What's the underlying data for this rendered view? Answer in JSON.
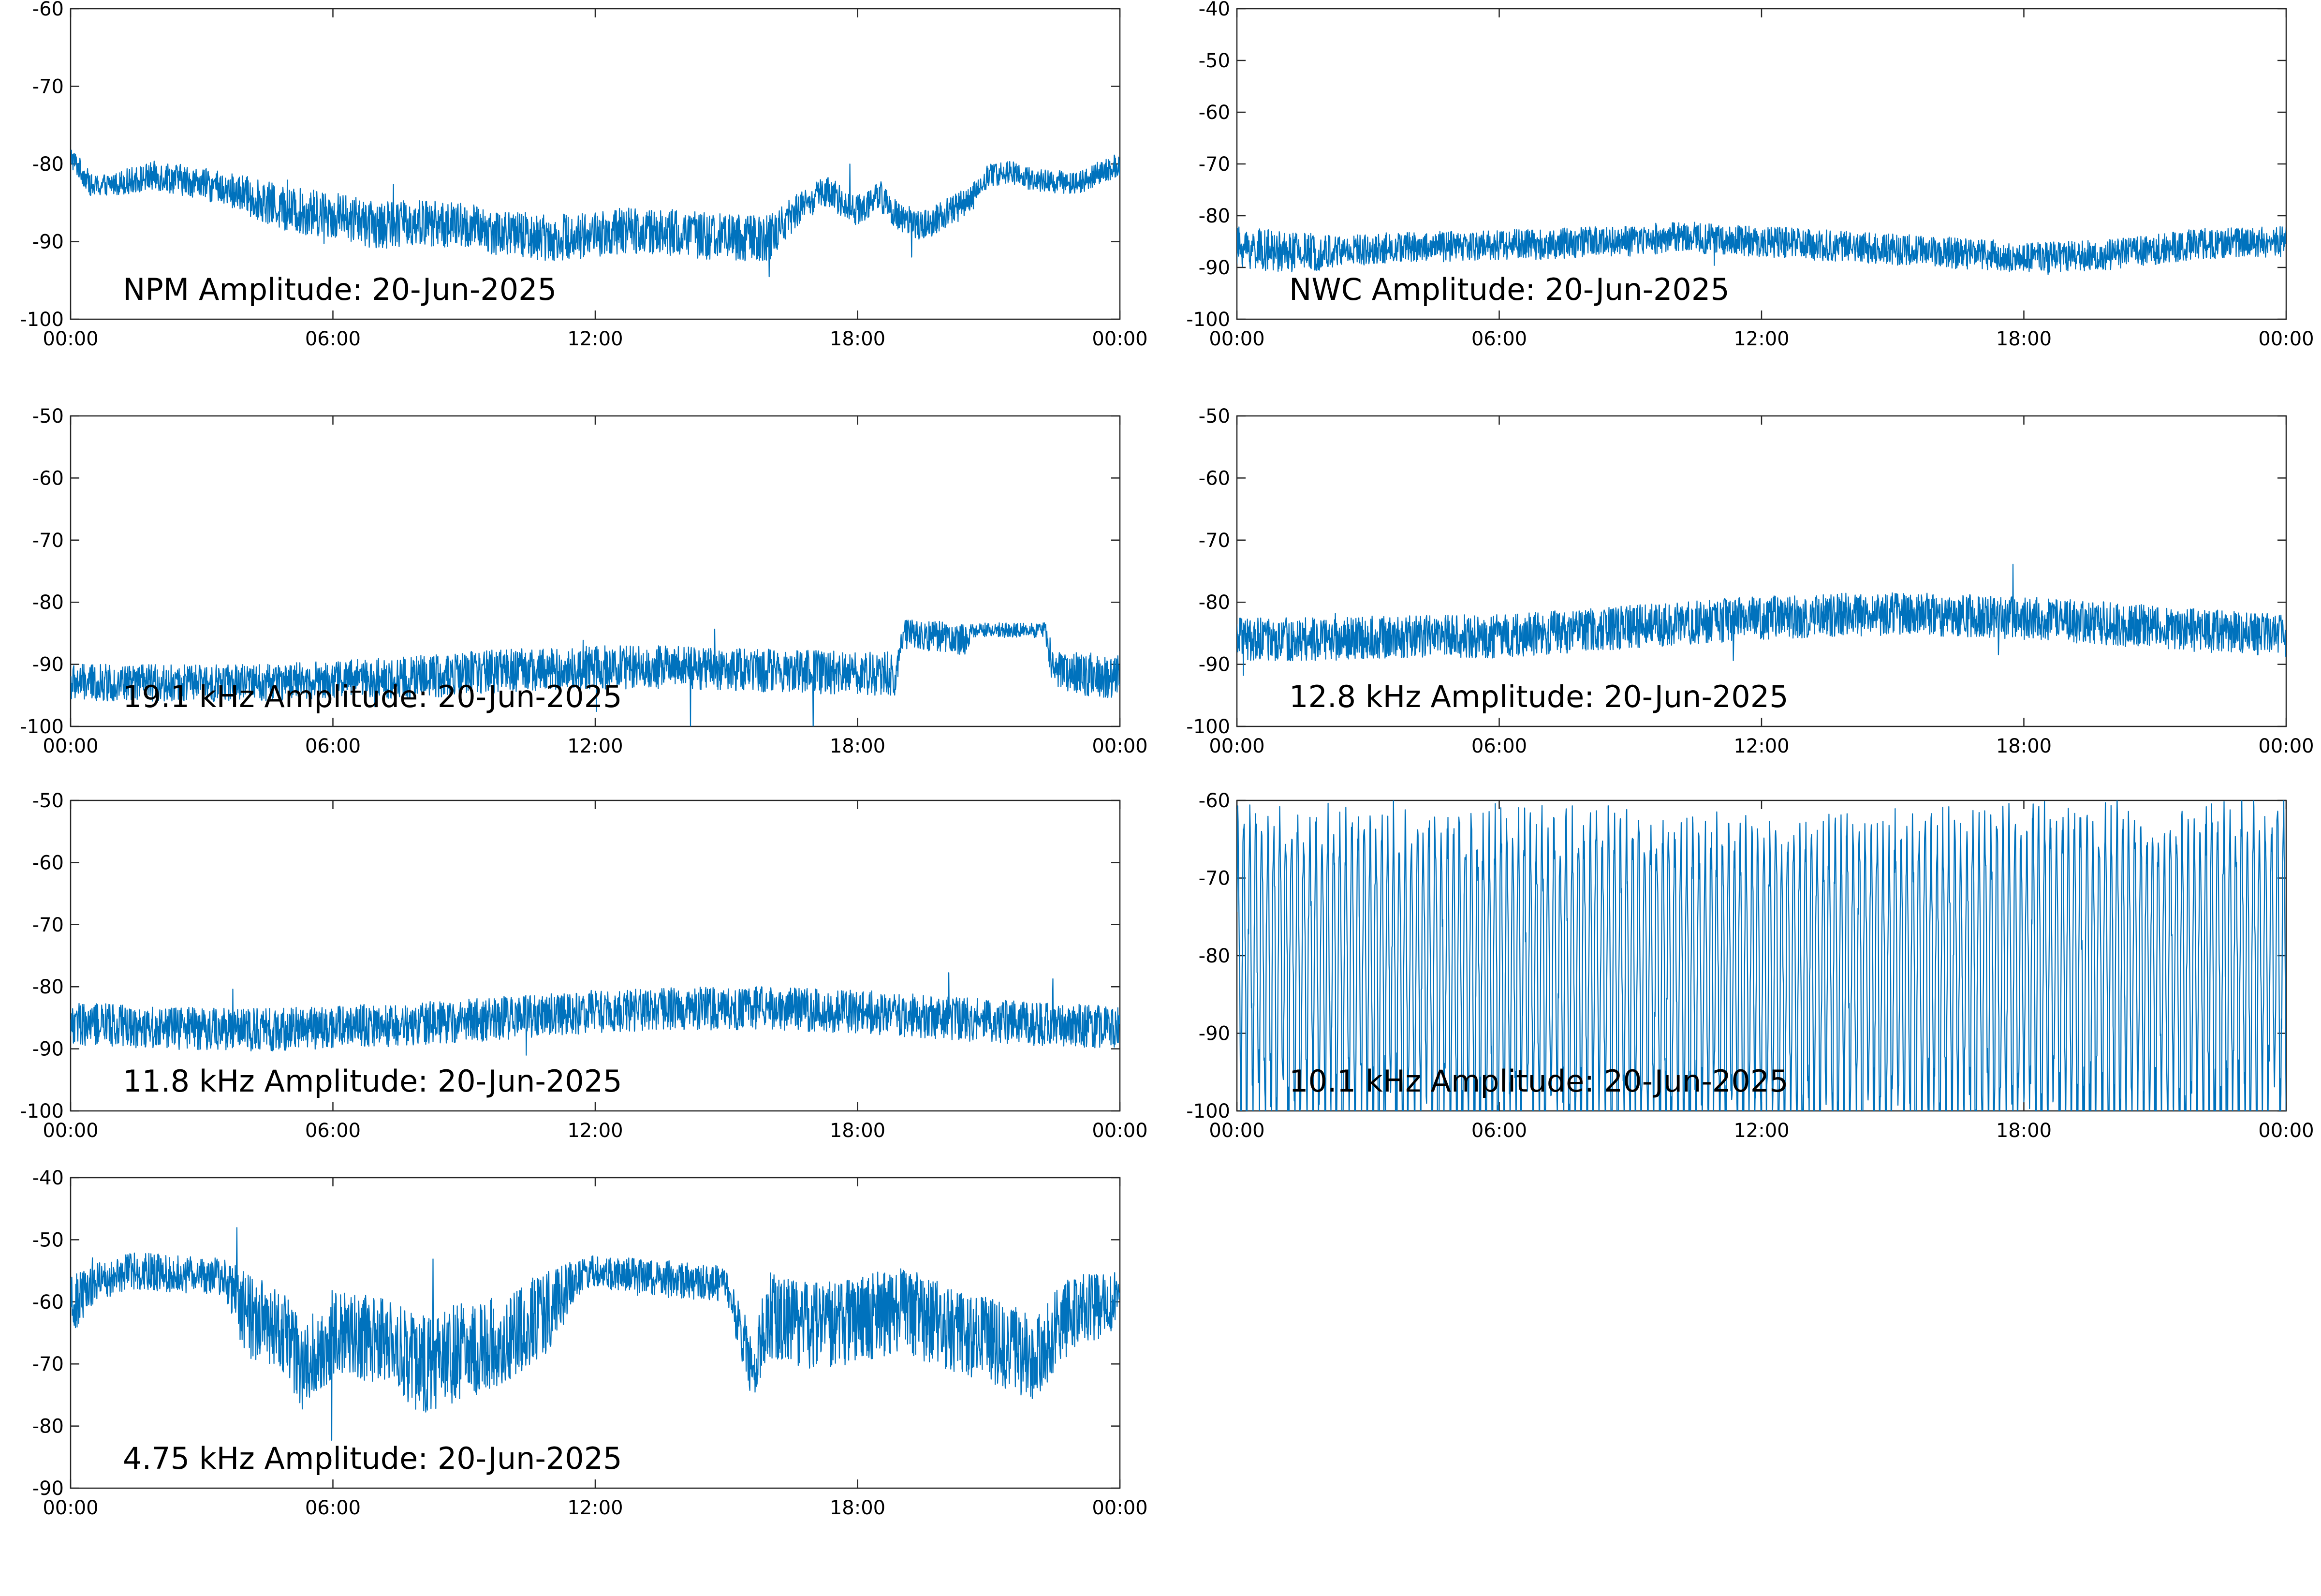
{
  "style": {
    "line_color": "#0072BD",
    "axis_color": "#262626",
    "background": "#ffffff"
  },
  "chart_data": [
    {
      "type": "line",
      "title": "NPM Amplitude: 20-Jun-2025",
      "ylim": [
        -100,
        -60
      ],
      "yticks": [
        "-60",
        "-70",
        "-80",
        "-90",
        "-100"
      ],
      "xlim": [
        "00:00",
        "24:00"
      ],
      "xticks": [
        "00:00",
        "06:00",
        "12:00",
        "18:00",
        "00:00"
      ],
      "grid": false,
      "series": [
        {
          "color": "#0072BD",
          "x": [
            0,
            0.5,
            1,
            2,
            3,
            4,
            5,
            6,
            7,
            8,
            9,
            10,
            11,
            12,
            13,
            14,
            15,
            16,
            16.7,
            17.3,
            18,
            18.5,
            19,
            19.5,
            20,
            20.5,
            21,
            21.5,
            22,
            23,
            24
          ],
          "y": [
            -79,
            -83,
            -82.5,
            -81.5,
            -82.5,
            -84,
            -86,
            -86.5,
            -88,
            -87.5,
            -88,
            -89,
            -89.5,
            -89,
            -88.5,
            -89,
            -89.5,
            -89.5,
            -85.5,
            -83.5,
            -86,
            -84,
            -87,
            -88,
            -86.5,
            -85,
            -81.5,
            -81,
            -82,
            -82.5,
            -80
          ],
          "spread": [
            1.5,
            1.5,
            1.5,
            2,
            2,
            2.5,
            3,
            3,
            3,
            3,
            3,
            3,
            3,
            3,
            3,
            3,
            3,
            3,
            2,
            2,
            2,
            2,
            2,
            2,
            2,
            2,
            1.5,
            1.5,
            1.5,
            1.5,
            1.5
          ]
        }
      ]
    },
    {
      "type": "line",
      "title": "NWC Amplitude: 20-Jun-2025",
      "ylim": [
        -100,
        -40
      ],
      "yticks": [
        "-40",
        "-50",
        "-60",
        "-70",
        "-80",
        "-90",
        "-100"
      ],
      "xlim": [
        "00:00",
        "24:00"
      ],
      "xticks": [
        "00:00",
        "06:00",
        "12:00",
        "18:00",
        "00:00"
      ],
      "grid": false,
      "series": [
        {
          "color": "#0072BD",
          "x": [
            0,
            1,
            2,
            3,
            4,
            5,
            6,
            7,
            8,
            9,
            10,
            11,
            12,
            13,
            14,
            15,
            16,
            17,
            18,
            19,
            20,
            21,
            22,
            23,
            24
          ],
          "y": [
            -86,
            -87,
            -87,
            -86.5,
            -86,
            -86,
            -85.5,
            -85.5,
            -85,
            -85,
            -84,
            -84.5,
            -85,
            -85.5,
            -86,
            -86.5,
            -87,
            -87.5,
            -88,
            -88,
            -87.5,
            -86.5,
            -85.5,
            -85,
            -85
          ],
          "spread": [
            4,
            4,
            3.5,
            3,
            3,
            3,
            3,
            3,
            3,
            3,
            3,
            3,
            3,
            3,
            3,
            3,
            3,
            3,
            3,
            3,
            3,
            3,
            3,
            3,
            3
          ]
        }
      ]
    },
    {
      "type": "line",
      "title": "19.1 kHz Amplitude: 20-Jun-2025",
      "ylim": [
        -100,
        -50
      ],
      "yticks": [
        "-50",
        "-60",
        "-70",
        "-80",
        "-90",
        "-100"
      ],
      "xlim": [
        "00:00",
        "24:00"
      ],
      "xticks": [
        "00:00",
        "06:00",
        "12:00",
        "18:00",
        "00:00"
      ],
      "grid": false,
      "series": [
        {
          "color": "#0072BD",
          "x": [
            0,
            2,
            4,
            6,
            8,
            10,
            12,
            14,
            16,
            18,
            18.9,
            19.0,
            20.5,
            20.6,
            22.3,
            22.4,
            23,
            24
          ],
          "y": [
            -93,
            -93,
            -93,
            -92.5,
            -92,
            -91,
            -90.5,
            -90.5,
            -91,
            -91.5,
            -91.5,
            -85,
            -86,
            -84.5,
            -84.5,
            -90.5,
            -91.5,
            -92
          ],
          "spread": [
            3,
            3,
            3,
            3,
            3.5,
            3.5,
            3.5,
            3.5,
            3.5,
            3.5,
            3.5,
            2.5,
            2.5,
            1.2,
            1.2,
            2.5,
            3.5,
            3.5
          ]
        }
      ]
    },
    {
      "type": "line",
      "title": "12.8 kHz Amplitude: 20-Jun-2025",
      "ylim": [
        -100,
        -50
      ],
      "yticks": [
        "-50",
        "-60",
        "-70",
        "-80",
        "-90",
        "-100"
      ],
      "xlim": [
        "00:00",
        "24:00"
      ],
      "xticks": [
        "00:00",
        "06:00",
        "12:00",
        "18:00",
        "00:00"
      ],
      "grid": false,
      "series": [
        {
          "color": "#0072BD",
          "x": [
            0,
            2,
            4,
            6,
            8,
            10,
            12,
            14,
            16,
            18,
            20,
            22,
            24
          ],
          "y": [
            -86,
            -86,
            -85.5,
            -85.5,
            -84.5,
            -83.5,
            -82.5,
            -82,
            -82,
            -82.5,
            -83.5,
            -84.5,
            -85.5
          ],
          "spread": [
            3.5,
            3.5,
            3.5,
            3.5,
            3.5,
            3.5,
            3.5,
            3.5,
            3.5,
            3.5,
            3.5,
            3.5,
            3.5
          ]
        }
      ]
    },
    {
      "type": "line",
      "title": "11.8 kHz Amplitude: 20-Jun-2025",
      "ylim": [
        -100,
        -50
      ],
      "yticks": [
        "-50",
        "-60",
        "-70",
        "-80",
        "-90",
        "-100"
      ],
      "xlim": [
        "00:00",
        "24:00"
      ],
      "xticks": [
        "00:00",
        "06:00",
        "12:00",
        "18:00",
        "00:00"
      ],
      "grid": false,
      "series": [
        {
          "color": "#0072BD",
          "x": [
            0,
            2,
            4,
            6,
            8,
            10,
            12,
            14,
            16,
            18,
            20,
            22,
            24
          ],
          "y": [
            -86,
            -86.5,
            -87,
            -86.5,
            -86,
            -85,
            -84,
            -83.5,
            -83.5,
            -84,
            -85,
            -86,
            -86.5
          ],
          "spread": [
            3.5,
            3.5,
            3.5,
            3.5,
            3.5,
            3.5,
            3.5,
            3.5,
            3.5,
            3.5,
            3.5,
            3.5,
            3.5
          ]
        }
      ]
    },
    {
      "type": "line",
      "title": "10.1 kHz Amplitude: 20-Jun-2025",
      "ylim": [
        -100,
        -60
      ],
      "yticks": [
        "-60",
        "-70",
        "-80",
        "-90",
        "-100"
      ],
      "xlim": [
        "00:00",
        "24:00"
      ],
      "xticks": [
        "00:00",
        "06:00",
        "12:00",
        "18:00",
        "00:00"
      ],
      "grid": false,
      "series": [
        {
          "color": "#0072BD",
          "x": [
            0,
            6,
            12,
            18,
            24
          ],
          "y": [
            -80,
            -81,
            -82,
            -81,
            -80
          ],
          "spread": [
            17,
            17,
            17,
            17,
            17
          ]
        }
      ]
    },
    {
      "type": "line",
      "title": "4.75 kHz Amplitude: 20-Jun-2025",
      "ylim": [
        -90,
        -40
      ],
      "yticks": [
        "-40",
        "-50",
        "-60",
        "-70",
        "-80",
        "-90"
      ],
      "xlim": [
        "00:00",
        "24:00"
      ],
      "xticks": [
        "00:00",
        "06:00",
        "12:00",
        "18:00",
        "00:00"
      ],
      "grid": false,
      "series": [
        {
          "color": "#0072BD",
          "x": [
            0,
            0.5,
            1.5,
            2.5,
            3.5,
            4,
            5,
            5.3,
            6,
            7,
            8,
            9,
            10,
            11,
            11.6,
            12,
            13,
            14,
            15,
            15.6,
            16,
            17,
            18,
            19,
            20,
            21,
            22,
            23,
            24
          ],
          "y": [
            -61,
            -57,
            -55,
            -55.5,
            -56,
            -62,
            -66,
            -71,
            -65,
            -66,
            -70,
            -68,
            -66,
            -61,
            -56,
            -55,
            -56,
            -56.5,
            -57,
            -70,
            -62,
            -64,
            -63,
            -61,
            -64,
            -66,
            -69,
            -61,
            -60
          ],
          "spread": [
            5,
            3.5,
            3,
            3,
            3,
            7,
            7,
            7,
            7,
            7,
            8,
            8,
            7,
            7,
            3,
            2.5,
            3,
            3,
            3,
            6,
            7,
            7,
            7,
            7,
            7,
            7,
            7,
            6,
            5
          ]
        }
      ]
    }
  ]
}
